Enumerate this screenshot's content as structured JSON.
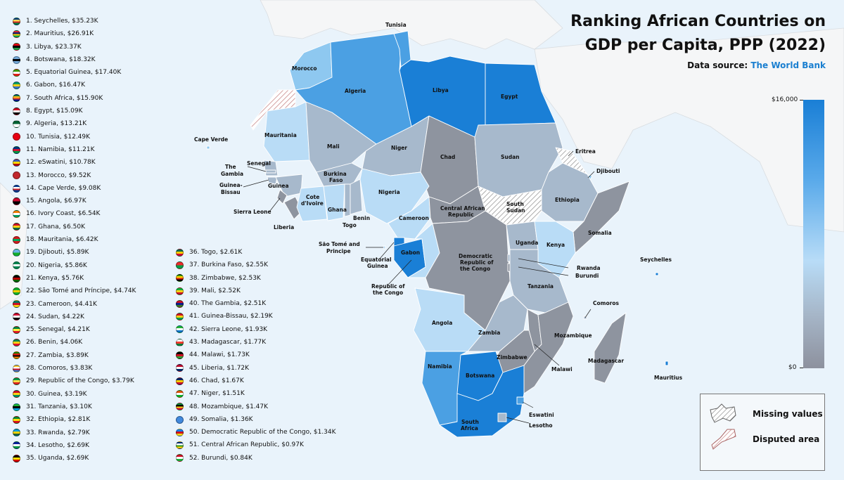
{
  "title_lines": [
    "Ranking African Countries on",
    "GDP per Capita, PPP (2022)"
  ],
  "source": {
    "label": "Data source:",
    "link": "The World Bank"
  },
  "scale": {
    "max_label": "$16,000",
    "min_label": "$0"
  },
  "legend": {
    "missing": "Missing values",
    "disputed": "Disputed area"
  },
  "colors": {
    "ocean": "#e9f3fb",
    "land_other": "#f5f6f7",
    "very_high": "#1a7fd6",
    "high": "#4ba0e3",
    "mid": "#8ec8f0",
    "low_mid": "#b9dcf6",
    "low": "#a7b9cc",
    "lowest": "#8e949f"
  },
  "ranking": [
    {
      "rank": "1",
      "text": "1. Seychelles, $35.23K",
      "flag": [
        "#003f87",
        "#fcd856",
        "#d62828",
        "#007a3d"
      ]
    },
    {
      "rank": "2",
      "text": "2. Mauritius, $26.91K",
      "flag": [
        "#ea2839",
        "#1a206d",
        "#ffd500",
        "#00a551"
      ]
    },
    {
      "rank": "3",
      "text": "3. Libya, $23.37K",
      "flag": [
        "#e70013",
        "#000000",
        "#239e46"
      ]
    },
    {
      "rank": "4",
      "text": "4. Botswana, $18.32K",
      "flag": [
        "#75aadb",
        "#000000",
        "#75aadb"
      ]
    },
    {
      "rank": "5",
      "text": "5. Equatorial Guinea, $17.40K",
      "flag": [
        "#3e9a00",
        "#ffffff",
        "#e32118"
      ]
    },
    {
      "rank": "6",
      "text": "6. Gabon, $16.47K",
      "flag": [
        "#009e60",
        "#fcd116",
        "#3a75c4"
      ]
    },
    {
      "rank": "7",
      "text": "7. South Africa, $15.90K",
      "flag": [
        "#007749",
        "#ffb81c",
        "#de3831",
        "#001489"
      ]
    },
    {
      "rank": "8",
      "text": "8. Egypt, $15.09K",
      "flag": [
        "#ce1126",
        "#ffffff",
        "#000000"
      ]
    },
    {
      "rank": "9",
      "text": "9. Algeria, $13.21K",
      "flag": [
        "#006233",
        "#ffffff"
      ]
    },
    {
      "rank": "10",
      "text": "10. Tunisia, $12.49K",
      "flag": [
        "#e70013",
        "#e70013"
      ]
    },
    {
      "rank": "11",
      "text": "11. Namibia, $11.21K",
      "flag": [
        "#003580",
        "#d21034",
        "#009543"
      ]
    },
    {
      "rank": "12",
      "text": "12. eSwatini, $10.78K",
      "flag": [
        "#3e5eb9",
        "#ffd900",
        "#b10c0c"
      ]
    },
    {
      "rank": "13",
      "text": "13. Morocco, $9.52K",
      "flag": [
        "#c1272d",
        "#c1272d"
      ]
    },
    {
      "rank": "14",
      "text": "14. Cape Verde, $9.08K",
      "flag": [
        "#003893",
        "#ffffff",
        "#cf2027",
        "#003893"
      ]
    },
    {
      "rank": "15",
      "text": "15. Angola, $6.97K",
      "flag": [
        "#cc092f",
        "#000000"
      ]
    },
    {
      "rank": "16",
      "text": "16. Ivory Coast, $6.54K",
      "flag": [
        "#f77f00",
        "#ffffff",
        "#009e60"
      ]
    },
    {
      "rank": "17",
      "text": "17. Ghana, $6.50K",
      "flag": [
        "#ce1126",
        "#fcd116",
        "#006b3f"
      ]
    },
    {
      "rank": "18",
      "text": "18. Mauritania, $6.42K",
      "flag": [
        "#d01c1f",
        "#00a95c",
        "#d01c1f"
      ]
    },
    {
      "rank": "19",
      "text": "19. Djibouti, $5.89K",
      "flag": [
        "#6ab2e7",
        "#12ad2b"
      ]
    },
    {
      "rank": "20",
      "text": "20. Nigeria, $5.86K",
      "flag": [
        "#008751",
        "#ffffff",
        "#008751"
      ]
    },
    {
      "rank": "21",
      "text": "21. Kenya, $5.76K",
      "flag": [
        "#000000",
        "#bb0000",
        "#006600"
      ]
    },
    {
      "rank": "22",
      "text": "22. São Tomé and Príncipe, $4.74K",
      "flag": [
        "#12ad2b",
        "#ffce00",
        "#12ad2b"
      ]
    },
    {
      "rank": "23",
      "text": "23. Cameroon, $4.41K",
      "flag": [
        "#007a5e",
        "#ce1126",
        "#fcd116"
      ]
    },
    {
      "rank": "24",
      "text": "24. Sudan, $4.22K",
      "flag": [
        "#d21034",
        "#ffffff",
        "#000000"
      ]
    },
    {
      "rank": "25",
      "text": "25. Senegal, $4.21K",
      "flag": [
        "#00853f",
        "#fdef42",
        "#e31b23"
      ]
    },
    {
      "rank": "26",
      "text": "26. Benin, $4.06K",
      "flag": [
        "#008751",
        "#fcd116",
        "#e8112d"
      ]
    },
    {
      "rank": "27",
      "text": "27. Zambia, $3.89K",
      "flag": [
        "#198a00",
        "#de2010",
        "#000000",
        "#ef7d00"
      ]
    },
    {
      "rank": "28",
      "text": "28. Comoros, $3.83K",
      "flag": [
        "#ffc61e",
        "#ffffff",
        "#ce1126",
        "#3a75c4"
      ]
    },
    {
      "rank": "29",
      "text": "29. Republic of the Congo, $3.79K",
      "flag": [
        "#009543",
        "#fbde4a",
        "#dc241f"
      ]
    },
    {
      "rank": "30",
      "text": "30. Guinea, $3.19K",
      "flag": [
        "#ce1126",
        "#fcd116",
        "#009460"
      ]
    },
    {
      "rank": "31",
      "text": "31. Tanzania, $3.10K",
      "flag": [
        "#1eb53a",
        "#000000",
        "#00a3dd"
      ]
    },
    {
      "rank": "32",
      "text": "32. Ethiopia, $2.81K",
      "flag": [
        "#078930",
        "#fcdd09",
        "#da121a"
      ]
    },
    {
      "rank": "33",
      "text": "33. Rwanda, $2.79K",
      "flag": [
        "#00a1de",
        "#fad201",
        "#20603d"
      ]
    },
    {
      "rank": "34",
      "text": "34. Lesotho, $2.69K",
      "flag": [
        "#00209f",
        "#ffffff",
        "#009543"
      ]
    },
    {
      "rank": "35",
      "text": "35. Uganda, $2.69K",
      "flag": [
        "#000000",
        "#fcdc04",
        "#d90000"
      ]
    },
    {
      "rank": "36",
      "text": "36. Togo, $2.61K",
      "flag": [
        "#006a4e",
        "#ffce00",
        "#d21034"
      ]
    },
    {
      "rank": "37",
      "text": "37. Burkina Faso, $2.55K",
      "flag": [
        "#ef2b2d",
        "#009e49"
      ]
    },
    {
      "rank": "38",
      "text": "38. Zimbabwe, $2.53K",
      "flag": [
        "#319208",
        "#ffd200",
        "#de2010",
        "#000000"
      ]
    },
    {
      "rank": "39",
      "text": "39. Mali, $2.52K",
      "flag": [
        "#14b53a",
        "#fcd116",
        "#ce1126"
      ]
    },
    {
      "rank": "40",
      "text": "40. The Gambia, $2.51K",
      "flag": [
        "#ce1126",
        "#0c1c8c",
        "#3a7728"
      ]
    },
    {
      "rank": "41",
      "text": "41. Guinea-Bissau, $2.19K",
      "flag": [
        "#ce1126",
        "#fcd116",
        "#009e49"
      ]
    },
    {
      "rank": "42",
      "text": "42. Sierra Leone, $1.93K",
      "flag": [
        "#1eb53a",
        "#ffffff",
        "#0072c6"
      ]
    },
    {
      "rank": "43",
      "text": "43. Madagascar, $1.77K",
      "flag": [
        "#ffffff",
        "#fc3d32",
        "#007e3a"
      ]
    },
    {
      "rank": "44",
      "text": "44. Malawi, $1.73K",
      "flag": [
        "#000000",
        "#ce1126",
        "#339e35"
      ]
    },
    {
      "rank": "45",
      "text": "45. Liberia, $1.72K",
      "flag": [
        "#bf0a30",
        "#ffffff",
        "#002868"
      ]
    },
    {
      "rank": "46",
      "text": "46. Chad, $1.67K",
      "flag": [
        "#002664",
        "#fecb00",
        "#c60c30"
      ]
    },
    {
      "rank": "47",
      "text": "47. Niger, $1.51K",
      "flag": [
        "#e05206",
        "#ffffff",
        "#0db02b"
      ]
    },
    {
      "rank": "48",
      "text": "48. Mozambique, $1.47K",
      "flag": [
        "#009a44",
        "#000000",
        "#fcd116",
        "#d21034"
      ]
    },
    {
      "rank": "49",
      "text": "49. Somalia, $1.36K",
      "flag": [
        "#4189dd",
        "#4189dd"
      ]
    },
    {
      "rank": "50",
      "text": "50. Democratic Republic of the Congo, $1.34K",
      "flag": [
        "#007fff",
        "#ce1021",
        "#f7d618"
      ]
    },
    {
      "rank": "51",
      "text": "51. Central African Republic, $0.97K",
      "flag": [
        "#003082",
        "#ffffff",
        "#289728",
        "#ffce00"
      ]
    },
    {
      "rank": "52",
      "text": "52. Burundi, $0.84K",
      "flag": [
        "#ce1126",
        "#ffffff",
        "#1eb53a"
      ]
    }
  ],
  "map_labels": {
    "tunisia": "Tunisia",
    "morocco": "Morocco",
    "algeria": "Algeria",
    "libya": "Libya",
    "egypt": "Egypt",
    "mauritania": "Mauritania",
    "mali": "Mali",
    "niger": "Niger",
    "chad": "Chad",
    "sudan": "Sudan",
    "eritrea": "Eritrea",
    "djibouti": "Djibouti",
    "cape_verde": "Cape Verde",
    "senegal": "Senegal",
    "the_gambia_1": "The",
    "the_gambia_2": "Gambia",
    "guinea_bissau_1": "Guinea-",
    "guinea_bissau_2": "Bissau",
    "guinea": "Guinea",
    "burkina_1": "Burkina",
    "burkina_2": "Faso",
    "cote_1": "Cote",
    "cote_2": "d'Ivoire",
    "ghana": "Ghana",
    "togo": "Togo",
    "benin": "Benin",
    "nigeria": "Nigeria",
    "sierra_leone": "Sierra Leone",
    "liberia": "Liberia",
    "cameroon": "Cameroon",
    "car_1": "Central African",
    "car_2": "Republic",
    "south_sudan_1": "South",
    "south_sudan_2": "Sudan",
    "ethiopia": "Ethiopia",
    "somalia": "Somalia",
    "sao_tome_1": "São Tomé and",
    "sao_tome_2": "Principe",
    "gabon": "Gabon",
    "eq_guinea_1": "Equatorial",
    "eq_guinea_2": "Guinea",
    "drc_1": "Democratic",
    "drc_2": "Republic of",
    "drc_3": "the Congo",
    "uganda": "Uganda",
    "kenya": "Kenya",
    "rwanda": "Rwanda",
    "burundi": "Burundi",
    "roc_1": "Republic of",
    "roc_2": "the Congo",
    "tanzania": "Tanzania",
    "seychelles": "Seychelles",
    "comoros": "Comoros",
    "angola": "Angola",
    "zambia": "Zambia",
    "mozambique": "Mozambique",
    "malawi": "Malawi",
    "zimbabwe": "Zimbabwe",
    "namibia": "Namibia",
    "botswana": "Botswana",
    "madagascar": "Madagascar",
    "mauritius": "Mauritius",
    "eswatini": "Eswatini",
    "south_africa_1": "South",
    "south_africa_2": "Africa",
    "lesotho": "Lesotho"
  }
}
